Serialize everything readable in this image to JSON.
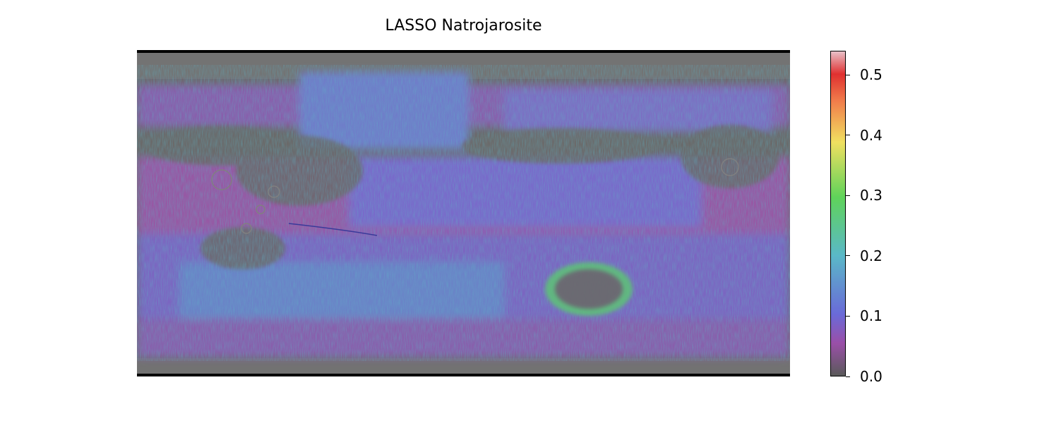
{
  "title": "LASSO Natrojarosite",
  "colorbar": {
    "min": 0.0,
    "max": 0.54,
    "ticks": [
      {
        "value": 0.0,
        "label": "0.0"
      },
      {
        "value": 0.1,
        "label": "0.1"
      },
      {
        "value": 0.2,
        "label": "0.2"
      },
      {
        "value": 0.3,
        "label": "0.3"
      },
      {
        "value": 0.4,
        "label": "0.4"
      },
      {
        "value": 0.5,
        "label": "0.5"
      }
    ],
    "colors": [
      "#555555",
      "#9a4fa8",
      "#6a6ad8",
      "#5ab8c8",
      "#5fd35a",
      "#f0e060",
      "#f07a4a",
      "#e03030",
      "#e8c0c8"
    ]
  },
  "map": {
    "basemap_color": "#6a6a6a",
    "overlay_colors": {
      "purple": "#9b5aa6",
      "blue": "#6b6ad6",
      "cyan": "#5aa9c6",
      "green": "#6fcf6a",
      "yellow": "#e4d95a"
    }
  }
}
